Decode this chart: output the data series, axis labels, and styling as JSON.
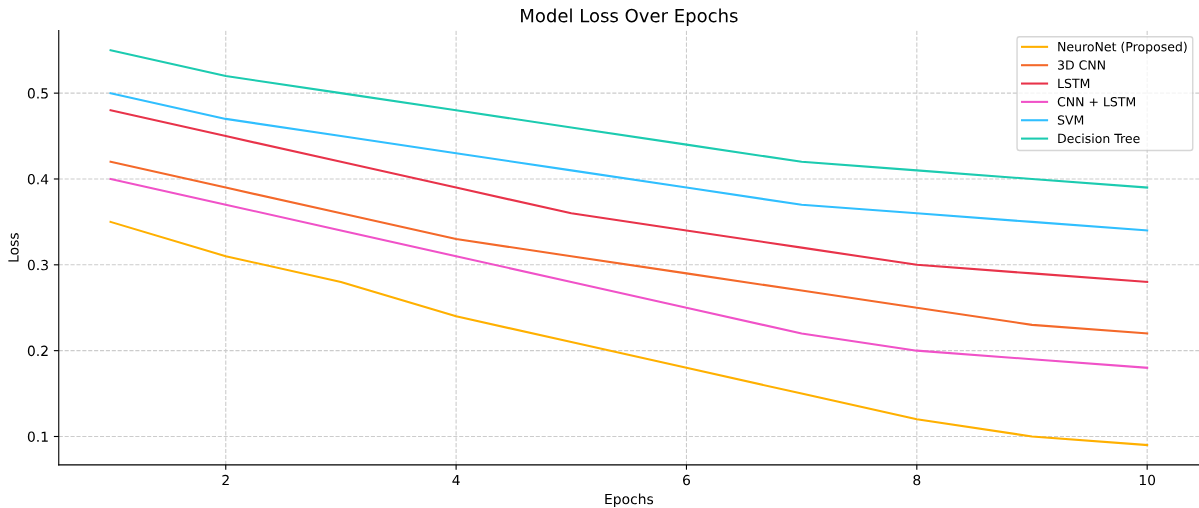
{
  "chart_data": {
    "type": "line",
    "title": "Model Loss Over Epochs",
    "xlabel": "Epochs",
    "ylabel": "Loss",
    "x": [
      1,
      2,
      3,
      4,
      5,
      6,
      7,
      8,
      9,
      10
    ],
    "series": [
      {
        "name": "NeuroNet (Proposed)",
        "color": "#ffb000",
        "values": [
          0.35,
          0.31,
          0.28,
          0.24,
          0.21,
          0.18,
          0.15,
          0.12,
          0.1,
          0.09
        ]
      },
      {
        "name": "3D CNN",
        "color": "#f4692a",
        "values": [
          0.42,
          0.39,
          0.36,
          0.33,
          0.31,
          0.29,
          0.27,
          0.25,
          0.23,
          0.22
        ]
      },
      {
        "name": "LSTM",
        "color": "#e8334a",
        "values": [
          0.48,
          0.45,
          0.42,
          0.39,
          0.36,
          0.34,
          0.32,
          0.3,
          0.29,
          0.28
        ]
      },
      {
        "name": "CNN + LSTM",
        "color": "#f052c8",
        "values": [
          0.4,
          0.37,
          0.34,
          0.31,
          0.28,
          0.25,
          0.22,
          0.2,
          0.19,
          0.18
        ]
      },
      {
        "name": "SVM",
        "color": "#30bfff",
        "values": [
          0.5,
          0.47,
          0.45,
          0.43,
          0.41,
          0.39,
          0.37,
          0.36,
          0.35,
          0.34
        ]
      },
      {
        "name": "Decision Tree",
        "color": "#1ccbb0",
        "values": [
          0.55,
          0.52,
          0.5,
          0.48,
          0.46,
          0.44,
          0.42,
          0.41,
          0.4,
          0.39
        ]
      }
    ],
    "xlim": [
      0.55,
      10.45
    ],
    "xticks": [
      2,
      4,
      6,
      8,
      10
    ],
    "ylim": [
      0.067,
      0.573
    ],
    "yticks": [
      0.1,
      0.2,
      0.3,
      0.4,
      0.5
    ],
    "grid": true,
    "legend": "top right",
    "marker": "none",
    "line_style": "solid"
  }
}
